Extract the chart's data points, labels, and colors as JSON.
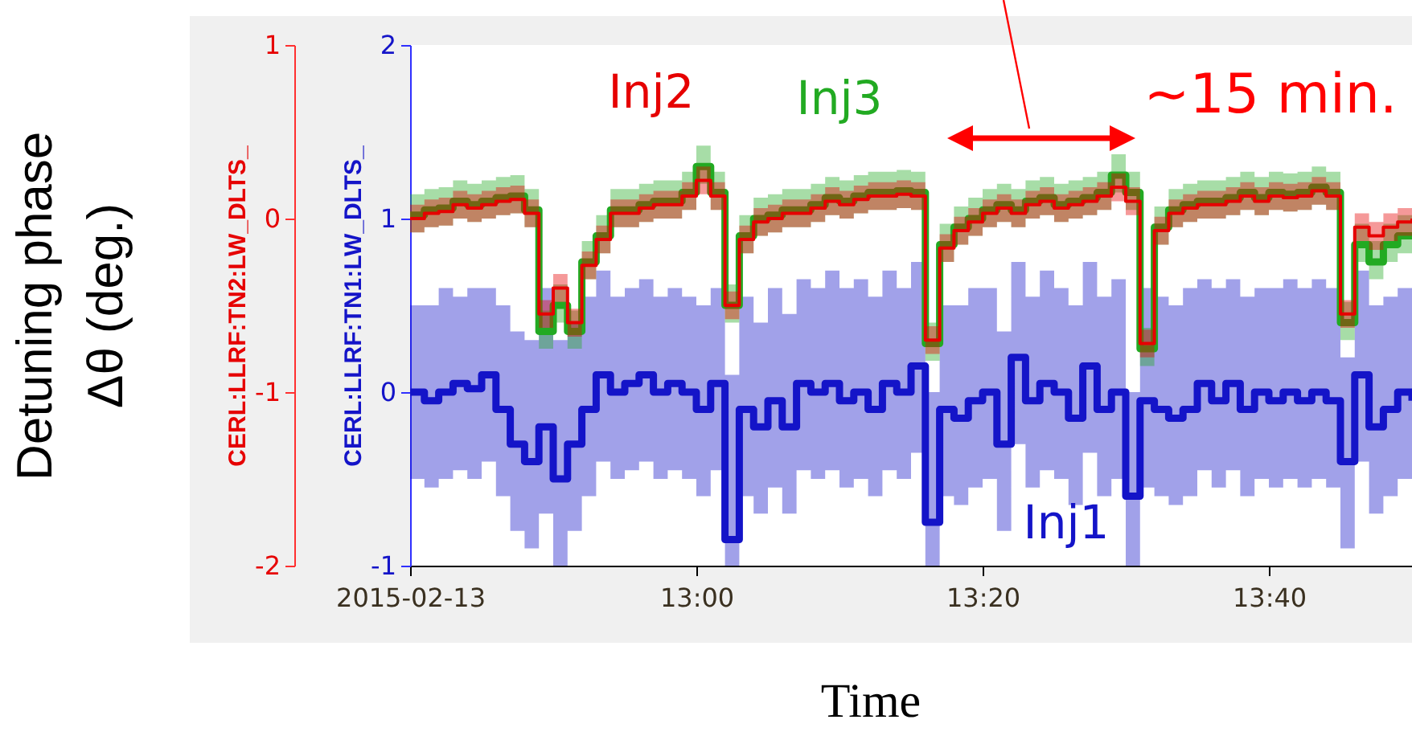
{
  "chart_data": {
    "type": "step",
    "ylabel": "CERL:LLRF:TN1:LW_DLTS_",
    "xlabel": "Time",
    "y2label": "CERL:LLRF:TN2:LW_DLTS_",
    "annotations": [
      "Detuning phase Δθ (deg.)",
      "~15 min."
    ],
    "xlim": [
      "2015-02-13T12:40",
      "2015-02-13T13:50"
    ],
    "xticks": [
      {
        "value": "2015-02-13T12:40",
        "label": "2015-02-13"
      },
      {
        "value": "2015-02-13T13:00",
        "label": "13:00"
      },
      {
        "value": "2015-02-13T13:20",
        "label": "13:20"
      },
      {
        "value": "2015-02-13T13:40",
        "label": "13:40"
      }
    ],
    "ylim": [
      -1,
      2
    ],
    "yticks": [
      -1,
      0,
      1,
      2
    ],
    "y2lim": [
      -2,
      1
    ],
    "y2ticks": [
      -2,
      -1,
      0,
      1
    ],
    "x": [
      "2015-02-13T12:40",
      "2015-02-13T12:41",
      "2015-02-13T12:42",
      "2015-02-13T12:43",
      "2015-02-13T12:44",
      "2015-02-13T12:45",
      "2015-02-13T12:46",
      "2015-02-13T12:47",
      "2015-02-13T12:48",
      "2015-02-13T12:49",
      "2015-02-13T12:50",
      "2015-02-13T12:51",
      "2015-02-13T12:52",
      "2015-02-13T12:53",
      "2015-02-13T12:54",
      "2015-02-13T12:55",
      "2015-02-13T12:56",
      "2015-02-13T12:57",
      "2015-02-13T12:58",
      "2015-02-13T12:59",
      "2015-02-13T13:00",
      "2015-02-13T13:01",
      "2015-02-13T13:02",
      "2015-02-13T13:03",
      "2015-02-13T13:04",
      "2015-02-13T13:05",
      "2015-02-13T13:06",
      "2015-02-13T13:07",
      "2015-02-13T13:08",
      "2015-02-13T13:09",
      "2015-02-13T13:10",
      "2015-02-13T13:11",
      "2015-02-13T13:12",
      "2015-02-13T13:13",
      "2015-02-13T13:14",
      "2015-02-13T13:15",
      "2015-02-13T13:16",
      "2015-02-13T13:17",
      "2015-02-13T13:18",
      "2015-02-13T13:19",
      "2015-02-13T13:20",
      "2015-02-13T13:21",
      "2015-02-13T13:22",
      "2015-02-13T13:23",
      "2015-02-13T13:24",
      "2015-02-13T13:25",
      "2015-02-13T13:26",
      "2015-02-13T13:27",
      "2015-02-13T13:28",
      "2015-02-13T13:29",
      "2015-02-13T13:30",
      "2015-02-13T13:31",
      "2015-02-13T13:32",
      "2015-02-13T13:33",
      "2015-02-13T13:34",
      "2015-02-13T13:35",
      "2015-02-13T13:36",
      "2015-02-13T13:37",
      "2015-02-13T13:38",
      "2015-02-13T13:39",
      "2015-02-13T13:40",
      "2015-02-13T13:41",
      "2015-02-13T13:42",
      "2015-02-13T13:43",
      "2015-02-13T13:44",
      "2015-02-13T13:45",
      "2015-02-13T13:46",
      "2015-02-13T13:47",
      "2015-02-13T13:48",
      "2015-02-13T13:49",
      "2015-02-13T13:50"
    ],
    "series": [
      {
        "name": "Inj1",
        "color": "#1414c8",
        "values": [
          0,
          -0.05,
          0,
          0.05,
          0.02,
          0.1,
          -0.1,
          -0.3,
          -0.4,
          -0.2,
          -0.5,
          -0.3,
          -0.1,
          0.1,
          0,
          0.05,
          0.1,
          0,
          0.05,
          0,
          -0.1,
          0.05,
          -0.85,
          -0.1,
          -0.2,
          -0.05,
          -0.2,
          0.05,
          0,
          0.05,
          -0.05,
          0,
          -0.1,
          0.05,
          0,
          0.15,
          -0.75,
          -0.1,
          -0.15,
          -0.05,
          0,
          -0.3,
          0.2,
          -0.05,
          0.05,
          0,
          -0.15,
          0.15,
          -0.1,
          0,
          -0.6,
          -0.05,
          -0.1,
          -0.15,
          -0.1,
          0.05,
          -0.05,
          0.05,
          -0.1,
          0,
          -0.05,
          0,
          -0.05,
          0,
          -0.05,
          -0.4,
          0.1,
          -0.2,
          -0.1,
          0,
          -0.05
        ],
        "lower": [
          -0.5,
          -0.55,
          -0.5,
          -0.45,
          -0.5,
          -0.4,
          -0.6,
          -0.8,
          -0.9,
          -0.7,
          -1,
          -0.8,
          -0.6,
          -0.4,
          -0.5,
          -0.45,
          -0.4,
          -0.5,
          -0.45,
          -0.5,
          -0.6,
          -0.45,
          -1,
          -0.6,
          -0.7,
          -0.55,
          -0.7,
          -0.45,
          -0.5,
          -0.45,
          -0.55,
          -0.5,
          -0.6,
          -0.45,
          -0.5,
          -0.35,
          -1,
          -0.6,
          -0.65,
          -0.55,
          -0.5,
          -0.8,
          -0.3,
          -0.55,
          -0.45,
          -0.5,
          -0.65,
          -0.35,
          -0.6,
          -0.5,
          -1,
          -0.55,
          -0.6,
          -0.65,
          -0.6,
          -0.45,
          -0.55,
          -0.45,
          -0.6,
          -0.5,
          -0.55,
          -0.5,
          -0.55,
          -0.5,
          -0.55,
          -0.9,
          -0.4,
          -0.7,
          -0.6,
          -0.5,
          -0.55
        ],
        "upper": [
          0.5,
          0.5,
          0.6,
          0.55,
          0.6,
          0.6,
          0.5,
          0.35,
          0.3,
          0.6,
          0.3,
          0.4,
          0.55,
          0.7,
          0.55,
          0.6,
          0.65,
          0.55,
          0.6,
          0.55,
          0.5,
          0.6,
          0.1,
          0.55,
          0.4,
          0.6,
          0.45,
          0.65,
          0.6,
          0.7,
          0.6,
          0.65,
          0.55,
          0.7,
          0.6,
          0.75,
          0,
          0.5,
          0.5,
          0.6,
          0.6,
          0.35,
          0.75,
          0.55,
          0.7,
          0.6,
          0.5,
          0.75,
          0.55,
          0.65,
          0,
          0.6,
          0.55,
          0.5,
          0.6,
          0.65,
          0.6,
          0.65,
          0.55,
          0.6,
          0.6,
          0.65,
          0.6,
          0.65,
          0.6,
          0.2,
          0.7,
          0.5,
          0.55,
          0.6,
          0.55
        ]
      },
      {
        "name": "Inj3",
        "color": "#22aa22",
        "axis": "y2",
        "values": [
          0.02,
          0.05,
          0.06,
          0.1,
          0.08,
          0.1,
          0.12,
          0.13,
          0.05,
          -0.65,
          -0.5,
          -0.65,
          -0.25,
          -0.1,
          0.05,
          0.05,
          0.08,
          0.1,
          0.1,
          0.15,
          0.3,
          0.15,
          -0.5,
          -0.1,
          0,
          0.02,
          0.05,
          0.05,
          0.08,
          0.12,
          0.1,
          0.13,
          0.15,
          0.15,
          0.16,
          0.15,
          -0.72,
          -0.15,
          -0.05,
          0,
          0.05,
          0.08,
          0.05,
          0.1,
          0.12,
          0.08,
          0.1,
          0.12,
          0.15,
          0.25,
          0.15,
          -0.75,
          -0.05,
          0.05,
          0.08,
          0.1,
          0.1,
          0.12,
          0.15,
          0.12,
          0.15,
          0.14,
          0.15,
          0.18,
          0.15,
          -0.6,
          -0.15,
          -0.25,
          -0.15,
          -0.1,
          -0.08
        ],
        "lower": [
          -0.08,
          -0.05,
          -0.04,
          0,
          -0.02,
          0,
          0.02,
          0.03,
          -0.05,
          -0.75,
          -0.6,
          -0.75,
          -0.35,
          -0.2,
          -0.05,
          -0.05,
          -0.02,
          0,
          0,
          0.05,
          0.2,
          0.05,
          -0.6,
          -0.2,
          -0.1,
          -0.08,
          -0.05,
          -0.05,
          -0.02,
          0.02,
          0,
          0.03,
          0.05,
          0.05,
          0.06,
          0.05,
          -0.82,
          -0.25,
          -0.15,
          -0.1,
          -0.05,
          -0.02,
          -0.05,
          0,
          0.02,
          -0.02,
          0,
          0.02,
          0.05,
          0.15,
          0.05,
          -0.85,
          -0.15,
          -0.05,
          -0.02,
          0,
          0,
          0.02,
          0.05,
          0.02,
          0.05,
          0.04,
          0.05,
          0.08,
          0.05,
          -0.7,
          -0.25,
          -0.35,
          -0.25,
          -0.2,
          -0.18
        ],
        "upper": [
          0.14,
          0.17,
          0.18,
          0.22,
          0.2,
          0.22,
          0.24,
          0.25,
          0.17,
          -0.53,
          -0.38,
          -0.53,
          -0.13,
          0.02,
          0.17,
          0.17,
          0.2,
          0.22,
          0.22,
          0.27,
          0.42,
          0.27,
          -0.38,
          0.02,
          0.12,
          0.14,
          0.17,
          0.17,
          0.2,
          0.24,
          0.22,
          0.25,
          0.27,
          0.27,
          0.28,
          0.27,
          -0.6,
          -0.03,
          0.07,
          0.12,
          0.17,
          0.2,
          0.17,
          0.22,
          0.24,
          0.2,
          0.22,
          0.24,
          0.27,
          0.37,
          0.27,
          -0.63,
          0.07,
          0.17,
          0.2,
          0.22,
          0.22,
          0.24,
          0.27,
          0.24,
          0.27,
          0.26,
          0.27,
          0.3,
          0.27,
          -0.48,
          -0.03,
          -0.13,
          -0.03,
          0.02,
          0.04
        ]
      },
      {
        "name": "Inj2",
        "color": "#e60000",
        "axis": "y2",
        "values": [
          0,
          0.03,
          0.04,
          0.08,
          0.06,
          0.08,
          0.1,
          0.11,
          0.03,
          -0.55,
          -0.4,
          -0.6,
          -0.27,
          -0.12,
          0.03,
          0.03,
          0.06,
          0.08,
          0.08,
          0.13,
          0.22,
          0.13,
          -0.5,
          -0.12,
          -0.02,
          0,
          0.03,
          0.03,
          0.06,
          0.1,
          0.08,
          0.11,
          0.13,
          0.13,
          0.14,
          0.13,
          -0.7,
          -0.17,
          -0.07,
          -0.02,
          0.03,
          0.06,
          0.03,
          0.08,
          0.1,
          0.06,
          0.08,
          0.1,
          0.13,
          0.18,
          0.1,
          -0.72,
          -0.07,
          0.03,
          0.06,
          0.08,
          0.08,
          0.1,
          0.13,
          0.1,
          0.13,
          0.12,
          0.13,
          0.16,
          0.13,
          -0.55,
          -0.05,
          -0.1,
          -0.05,
          -0.02,
          0
        ],
        "lower": [
          -0.08,
          -0.05,
          -0.04,
          0,
          -0.02,
          0,
          0.02,
          0.03,
          -0.05,
          -0.63,
          -0.48,
          -0.68,
          -0.35,
          -0.2,
          -0.05,
          -0.05,
          -0.02,
          0,
          0,
          0.05,
          0.14,
          0.05,
          -0.58,
          -0.2,
          -0.1,
          -0.08,
          -0.05,
          -0.05,
          -0.02,
          0.02,
          0,
          0.03,
          0.05,
          0.05,
          0.06,
          0.05,
          -0.78,
          -0.25,
          -0.15,
          -0.1,
          -0.05,
          -0.02,
          -0.05,
          0,
          0.02,
          -0.02,
          0,
          0.02,
          0.05,
          0.1,
          0.02,
          -0.8,
          -0.15,
          -0.05,
          -0.02,
          0,
          0,
          0.02,
          0.05,
          0.02,
          0.05,
          0.04,
          0.05,
          0.08,
          0.05,
          -0.63,
          -0.13,
          -0.18,
          -0.13,
          -0.1,
          -0.08
        ],
        "upper": [
          0.08,
          0.11,
          0.12,
          0.16,
          0.14,
          0.16,
          0.18,
          0.19,
          0.11,
          -0.47,
          -0.32,
          -0.52,
          -0.19,
          -0.04,
          0.11,
          0.11,
          0.14,
          0.16,
          0.16,
          0.21,
          0.3,
          0.21,
          -0.42,
          -0.04,
          0.06,
          0.08,
          0.11,
          0.11,
          0.14,
          0.18,
          0.16,
          0.19,
          0.21,
          0.21,
          0.22,
          0.21,
          -0.62,
          -0.09,
          0.01,
          0.06,
          0.11,
          0.14,
          0.11,
          0.16,
          0.18,
          0.14,
          0.16,
          0.18,
          0.21,
          0.26,
          0.18,
          -0.64,
          0.01,
          0.11,
          0.14,
          0.16,
          0.16,
          0.18,
          0.21,
          0.18,
          0.21,
          0.2,
          0.21,
          0.24,
          0.21,
          -0.47,
          0.03,
          -0.02,
          0.03,
          0.06,
          0.08
        ]
      }
    ]
  }
}
